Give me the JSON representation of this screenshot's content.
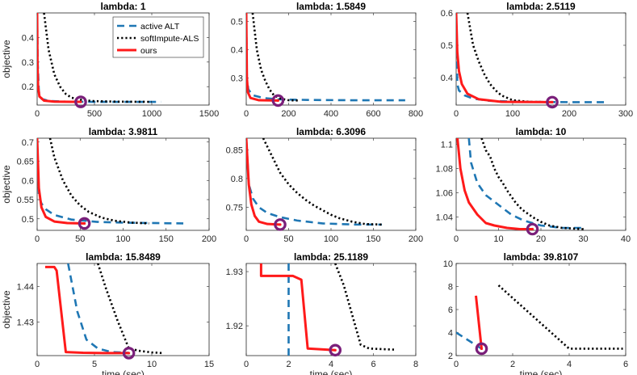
{
  "figure": {
    "ylabel": "objective",
    "xlabel": "time (sec)",
    "legend_position": "top-right of first panel",
    "colors": {
      "active_alt": "#1f77b4",
      "softimpute": "#000000",
      "ours": "#ff1a1a",
      "marker": "#7a1f7a"
    }
  },
  "chart_data": [
    {
      "type": "line",
      "title": "lambda: 1",
      "xlabel": "",
      "ylabel": "objective",
      "xlim": [
        0,
        1500
      ],
      "ylim": [
        0.125,
        0.5
      ],
      "xticks": [
        0,
        500,
        1000,
        1500
      ],
      "xtick_labels": [
        "0",
        "500",
        "1000",
        "1500"
      ],
      "yticks": [
        0.2,
        0.3,
        0.4
      ],
      "ytick_labels": [
        "0.2",
        "0.3",
        "0.4"
      ],
      "legend": [
        {
          "name": "active ALT",
          "style": "dashed"
        },
        {
          "name": "softImpute-ALS",
          "style": "dotted"
        },
        {
          "name": "ours",
          "style": "solid"
        }
      ],
      "series": [
        {
          "name": "active ALT",
          "x": [
            0,
            5,
            15,
            40,
            100,
            250,
            500,
            800,
            1080
          ],
          "y": [
            0.5,
            0.3,
            0.18,
            0.15,
            0.142,
            0.139,
            0.138,
            0.138,
            0.138
          ]
        },
        {
          "name": "softImpute-ALS",
          "x": [
            60,
            100,
            150,
            200,
            250,
            300,
            400,
            500,
            700,
            1000
          ],
          "y": [
            0.5,
            0.35,
            0.25,
            0.2,
            0.17,
            0.155,
            0.145,
            0.141,
            0.139,
            0.138
          ]
        },
        {
          "name": "ours",
          "x": [
            0,
            3,
            8,
            20,
            60,
            150,
            300,
            380
          ],
          "y": [
            0.5,
            0.3,
            0.2,
            0.16,
            0.143,
            0.139,
            0.138,
            0.138
          ]
        }
      ],
      "marker": {
        "x": 380,
        "y": 0.138
      }
    },
    {
      "type": "line",
      "title": "lambda: 1.5849",
      "xlabel": "",
      "ylabel": "",
      "xlim": [
        0,
        800
      ],
      "ylim": [
        0.205,
        0.53
      ],
      "xticks": [
        0,
        200,
        400,
        600,
        800
      ],
      "xtick_labels": [
        "0",
        "200",
        "400",
        "600",
        "800"
      ],
      "yticks": [
        0.3,
        0.4,
        0.5
      ],
      "ytick_labels": [
        "0.3",
        "0.4",
        "0.5"
      ],
      "series": [
        {
          "name": "active ALT",
          "x": [
            0,
            3,
            10,
            30,
            80,
            150,
            300,
            500,
            750
          ],
          "y": [
            0.53,
            0.3,
            0.26,
            0.24,
            0.23,
            0.225,
            0.223,
            0.222,
            0.222
          ]
        },
        {
          "name": "softImpute-ALS",
          "x": [
            30,
            50,
            70,
            90,
            110,
            130,
            160,
            200,
            250
          ],
          "y": [
            0.53,
            0.4,
            0.33,
            0.29,
            0.26,
            0.24,
            0.228,
            0.222,
            0.221
          ]
        },
        {
          "name": "ours",
          "x": [
            0,
            3,
            8,
            20,
            60,
            150
          ],
          "y": [
            0.53,
            0.3,
            0.25,
            0.23,
            0.222,
            0.221
          ]
        }
      ],
      "marker": {
        "x": 150,
        "y": 0.221
      }
    },
    {
      "type": "line",
      "title": "lambda: 2.5119",
      "xlabel": "",
      "ylabel": "",
      "xlim": [
        0,
        300
      ],
      "ylim": [
        0.315,
        0.6
      ],
      "xticks": [
        0,
        100,
        200,
        300
      ],
      "xtick_labels": [
        "0",
        "100",
        "200",
        "300"
      ],
      "yticks": [
        0.4,
        0.5,
        0.6
      ],
      "ytick_labels": [
        "0.4",
        "0.5",
        "0.6"
      ],
      "series": [
        {
          "name": "active ALT",
          "x": [
            0,
            2,
            5,
            15,
            30,
            60,
            120,
            200,
            265
          ],
          "y": [
            0.6,
            0.38,
            0.36,
            0.345,
            0.335,
            0.328,
            0.325,
            0.324,
            0.324
          ]
        },
        {
          "name": "softImpute-ALS",
          "x": [
            20,
            30,
            40,
            50,
            60,
            70,
            80,
            100,
            130,
            170
          ],
          "y": [
            0.6,
            0.5,
            0.45,
            0.41,
            0.38,
            0.36,
            0.345,
            0.33,
            0.325,
            0.324
          ]
        },
        {
          "name": "ours",
          "x": [
            0,
            2,
            5,
            10,
            20,
            40,
            80,
            170
          ],
          "y": [
            0.6,
            0.48,
            0.42,
            0.38,
            0.35,
            0.333,
            0.325,
            0.324
          ]
        }
      ],
      "marker": {
        "x": 170,
        "y": 0.324
      }
    },
    {
      "type": "line",
      "title": "lambda: 3.9811",
      "xlabel": "",
      "ylabel": "objective",
      "xlim": [
        0,
        200
      ],
      "ylim": [
        0.47,
        0.71
      ],
      "xticks": [
        0,
        50,
        100,
        150,
        200
      ],
      "xtick_labels": [
        "0",
        "50",
        "100",
        "150",
        "200"
      ],
      "yticks": [
        0.5,
        0.55,
        0.6,
        0.65,
        0.7
      ],
      "ytick_labels": [
        "0.5",
        "0.55",
        "0.6",
        "0.65",
        "0.7"
      ],
      "series": [
        {
          "name": "active ALT",
          "x": [
            0,
            2,
            5,
            10,
            20,
            40,
            70,
            100,
            170
          ],
          "y": [
            0.71,
            0.56,
            0.54,
            0.525,
            0.51,
            0.498,
            0.492,
            0.49,
            0.488
          ]
        },
        {
          "name": "softImpute-ALS",
          "x": [
            15,
            20,
            25,
            30,
            40,
            50,
            60,
            75,
            90,
            110,
            130
          ],
          "y": [
            0.71,
            0.66,
            0.63,
            0.6,
            0.56,
            0.535,
            0.518,
            0.503,
            0.495,
            0.49,
            0.488
          ]
        },
        {
          "name": "ours",
          "x": [
            0,
            2,
            5,
            10,
            20,
            35,
            55
          ],
          "y": [
            0.71,
            0.58,
            0.53,
            0.505,
            0.493,
            0.489,
            0.488
          ]
        }
      ],
      "marker": {
        "x": 55,
        "y": 0.488
      }
    },
    {
      "type": "line",
      "title": "lambda: 6.3096",
      "xlabel": "",
      "ylabel": "",
      "xlim": [
        0,
        200
      ],
      "ylim": [
        0.71,
        0.87
      ],
      "xticks": [
        0,
        50,
        100,
        150,
        200
      ],
      "xtick_labels": [
        "0",
        "50",
        "100",
        "150",
        "200"
      ],
      "yticks": [
        0.75,
        0.8,
        0.85
      ],
      "ytick_labels": [
        "0.75",
        "0.8",
        "0.85"
      ],
      "series": [
        {
          "name": "active ALT",
          "x": [
            0,
            3,
            8,
            15,
            25,
            40,
            60,
            90,
            130,
            160
          ],
          "y": [
            0.87,
            0.79,
            0.765,
            0.75,
            0.74,
            0.733,
            0.727,
            0.722,
            0.72,
            0.72
          ]
        },
        {
          "name": "softImpute-ALS",
          "x": [
            20,
            30,
            40,
            50,
            60,
            70,
            80,
            90,
            100,
            110,
            125,
            140,
            160
          ],
          "y": [
            0.87,
            0.84,
            0.81,
            0.79,
            0.775,
            0.763,
            0.753,
            0.745,
            0.737,
            0.731,
            0.725,
            0.721,
            0.72
          ]
        },
        {
          "name": "ours",
          "x": [
            0,
            3,
            6,
            10,
            15,
            25,
            40
          ],
          "y": [
            0.87,
            0.79,
            0.755,
            0.735,
            0.725,
            0.721,
            0.72
          ]
        }
      ],
      "marker": {
        "x": 40,
        "y": 0.72
      }
    },
    {
      "type": "line",
      "title": "lambda: 10",
      "xlabel": "",
      "ylabel": "",
      "xlim": [
        0,
        40
      ],
      "ylim": [
        1.029,
        1.105
      ],
      "xticks": [
        0,
        10,
        20,
        30,
        40
      ],
      "xtick_labels": [
        "0",
        "10",
        "20",
        "30",
        "40"
      ],
      "yticks": [
        1.04,
        1.06,
        1.08,
        1.1
      ],
      "ytick_labels": [
        "1.04",
        "1.06",
        "1.08",
        "1.1"
      ],
      "series": [
        {
          "name": "active ALT",
          "x": [
            3,
            3.5,
            5,
            7,
            10,
            13,
            16,
            20,
            25,
            30
          ],
          "y": [
            1.105,
            1.085,
            1.068,
            1.058,
            1.05,
            1.042,
            1.037,
            1.033,
            1.031,
            1.031
          ]
        },
        {
          "name": "softImpute-ALS",
          "x": [
            6,
            7,
            8,
            9,
            10,
            11,
            12,
            13,
            14,
            15,
            16,
            18,
            20,
            22,
            25,
            30
          ],
          "y": [
            1.105,
            1.095,
            1.09,
            1.08,
            1.073,
            1.068,
            1.062,
            1.057,
            1.052,
            1.048,
            1.045,
            1.04,
            1.036,
            1.033,
            1.031,
            1.03
          ]
        },
        {
          "name": "ours",
          "x": [
            0.3,
            1,
            2,
            3,
            5,
            7,
            9,
            12,
            15,
            18
          ],
          "y": [
            1.105,
            1.08,
            1.062,
            1.052,
            1.042,
            1.035,
            1.033,
            1.031,
            1.03,
            1.03
          ]
        }
      ],
      "marker": {
        "x": 18,
        "y": 1.03
      }
    },
    {
      "type": "line",
      "title": "lambda: 15.8489",
      "xlabel": "time (sec)",
      "ylabel": "objective",
      "xlim": [
        0,
        15
      ],
      "ylim": [
        1.4205,
        1.4465
      ],
      "xticks": [
        0,
        5,
        10,
        15
      ],
      "xtick_labels": [
        "0",
        "5",
        "10",
        "15"
      ],
      "yticks": [
        1.43,
        1.44
      ],
      "ytick_labels": [
        "1.43",
        "1.44"
      ],
      "series": [
        {
          "name": "active ALT",
          "x": [
            2.7,
            3.5,
            4.3,
            5.3,
            6.5,
            8
          ],
          "y": [
            1.4465,
            1.433,
            1.425,
            1.4225,
            1.4215,
            1.4213
          ]
        },
        {
          "name": "softImpute-ALS",
          "x": [
            5.3,
            6,
            7,
            8,
            9,
            10,
            11
          ],
          "y": [
            1.4465,
            1.4395,
            1.4305,
            1.4225,
            1.4218,
            1.4214,
            1.4212
          ]
        },
        {
          "name": "ours",
          "x": [
            0.7,
            1.5,
            1.7,
            2.5,
            4,
            6,
            8
          ],
          "y": [
            1.4455,
            1.4455,
            1.4445,
            1.4215,
            1.4213,
            1.4212,
            1.4212
          ]
        }
      ],
      "marker": {
        "x": 8,
        "y": 1.4212
      }
    },
    {
      "type": "line",
      "title": "lambda: 25.1189",
      "xlabel": "time (sec)",
      "ylabel": "",
      "xlim": [
        0,
        8
      ],
      "ylim": [
        1.9145,
        1.9315
      ],
      "xticks": [
        0,
        2,
        4,
        6,
        8
      ],
      "xtick_labels": [
        "0",
        "2",
        "4",
        "6",
        "8"
      ],
      "yticks": [
        1.92,
        1.93
      ],
      "ytick_labels": [
        "1.92",
        "1.93"
      ],
      "series": [
        {
          "name": "active ALT",
          "x": [
            2,
            2,
            2
          ],
          "y": [
            1.9315,
            1.922,
            1.9145
          ]
        },
        {
          "name": "softImpute-ALS",
          "x": [
            4.2,
            4.6,
            5,
            5.4,
            5.8,
            7
          ],
          "y": [
            1.9315,
            1.9275,
            1.922,
            1.9165,
            1.9158,
            1.9156
          ]
        },
        {
          "name": "ours",
          "x": [
            0.7,
            0.7,
            2.2,
            2.6,
            2.9,
            4.2
          ],
          "y": [
            1.9315,
            1.9292,
            1.9292,
            1.9285,
            1.9158,
            1.9155
          ]
        }
      ],
      "marker": {
        "x": 4.2,
        "y": 1.9155
      }
    },
    {
      "type": "line",
      "title": "lambda: 39.8107",
      "xlabel": "time (sec)",
      "ylabel": "",
      "xlim": [
        0,
        6
      ],
      "ylim": [
        2,
        10
      ],
      "xticks": [
        0,
        2,
        4,
        6
      ],
      "xtick_labels": [
        "0",
        "2",
        "4",
        "6"
      ],
      "yticks": [
        2,
        4,
        6,
        8,
        10
      ],
      "ytick_labels": [
        "2",
        "4",
        "6",
        "8",
        "10"
      ],
      "series": [
        {
          "name": "active ALT",
          "x": [
            0,
            0.9
          ],
          "y": [
            4,
            2.6
          ]
        },
        {
          "name": "softImpute-ALS",
          "x": [
            1.5,
            4,
            5.9
          ],
          "y": [
            8.1,
            2.6,
            2.6
          ]
        },
        {
          "name": "ours",
          "x": [
            0.7,
            0.9
          ],
          "y": [
            7.2,
            2.6
          ]
        }
      ],
      "marker": {
        "x": 0.9,
        "y": 2.6
      }
    }
  ]
}
